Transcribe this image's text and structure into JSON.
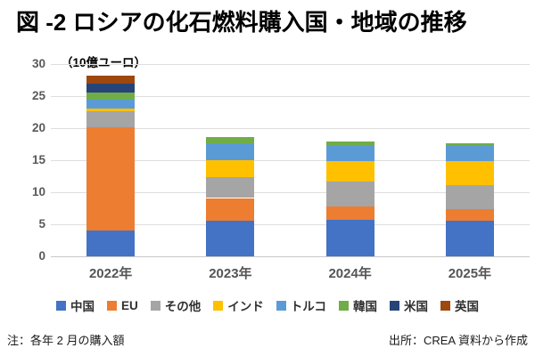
{
  "title": "図 -2 ロシアの化石燃料購入国・地域の推移",
  "unit_label": "（10億ユーロ）",
  "chart_data": {
    "type": "bar",
    "stacked": true,
    "title": "図 -2 ロシアの化石燃料購入国・地域の推移",
    "ylabel": "（10億ユーロ）",
    "xlabel": "",
    "ylim": [
      0,
      30
    ],
    "yticks": [
      0,
      5,
      10,
      15,
      20,
      25,
      30
    ],
    "grid": true,
    "legend_position": "bottom",
    "categories": [
      "2022年",
      "2023年",
      "2024年",
      "2025年"
    ],
    "series": [
      {
        "name": "中国",
        "color": "#4472C4",
        "values": [
          4.0,
          5.5,
          5.7,
          5.5
        ]
      },
      {
        "name": "EU",
        "color": "#ED7D31",
        "values": [
          16.2,
          3.6,
          2.1,
          1.9
        ]
      },
      {
        "name": "その他",
        "color": "#A5A5A5",
        "values": [
          2.4,
          3.2,
          3.8,
          3.7
        ]
      },
      {
        "name": "インド",
        "color": "#FFC000",
        "values": [
          0.4,
          2.7,
          3.2,
          3.8
        ]
      },
      {
        "name": "トルコ",
        "color": "#5B9BD5",
        "values": [
          1.4,
          2.6,
          2.6,
          2.5
        ]
      },
      {
        "name": "韓国",
        "color": "#70AD47",
        "values": [
          1.2,
          1.0,
          0.5,
          0.2
        ]
      },
      {
        "name": "米国",
        "color": "#264478",
        "values": [
          1.3,
          0,
          0,
          0
        ]
      },
      {
        "name": "英国",
        "color": "#9E480E",
        "values": [
          1.3,
          0,
          0,
          0
        ]
      }
    ],
    "totals": [
      28.2,
      18.6,
      17.9,
      17.6
    ]
  },
  "footer": {
    "note": "注：各年 2 月の購入額",
    "source": "出所：CREA 資料から作成"
  }
}
